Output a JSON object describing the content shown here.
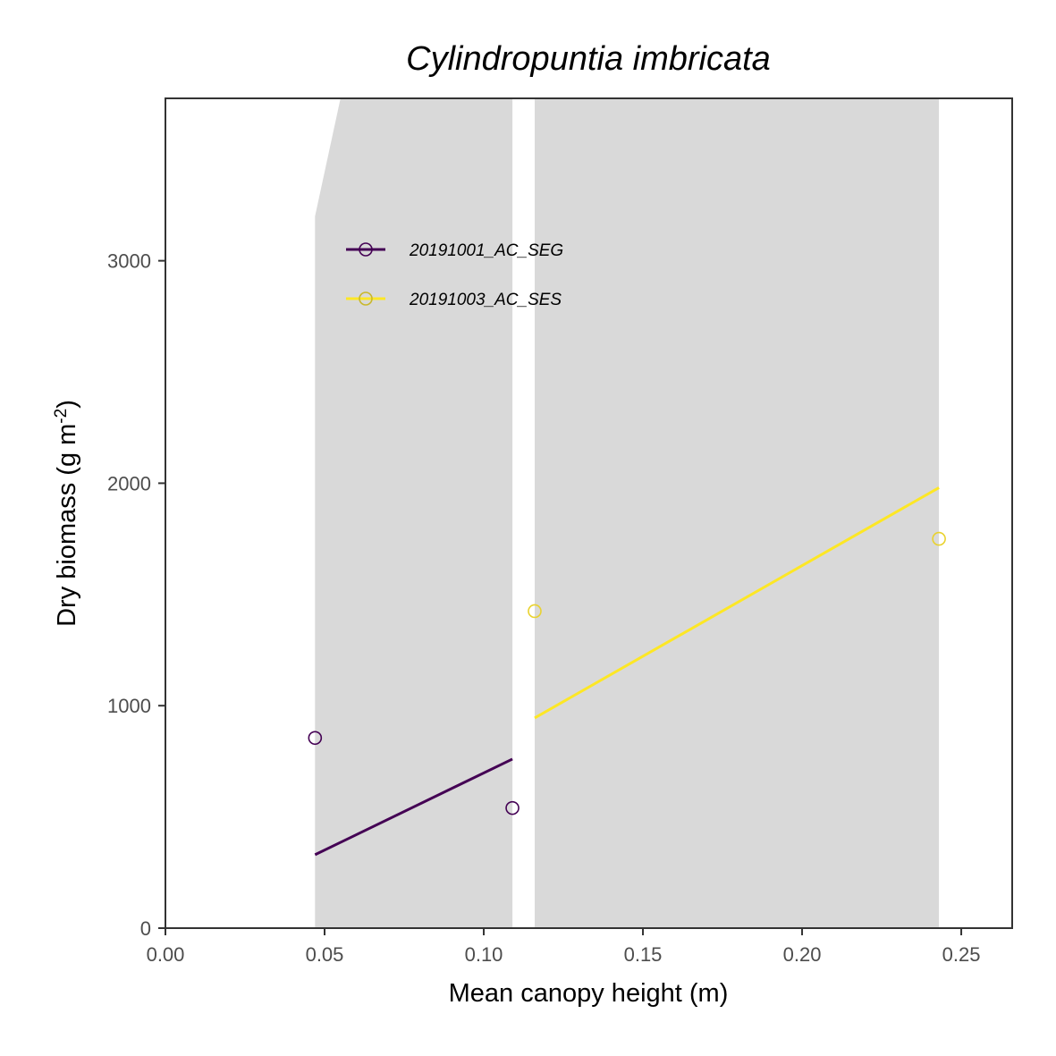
{
  "chart_data": {
    "type": "scatter",
    "title": "Cylindropuntia imbricata",
    "xlabel": "Mean canopy height (m)",
    "ylabel_main": "Dry biomass (g m",
    "ylabel_sup": "-2",
    "ylabel_close": ")",
    "xlim": [
      0,
      0.266
    ],
    "ylim": [
      0,
      3730
    ],
    "x_ticks": [
      0,
      0.05,
      0.1,
      0.15,
      0.2,
      0.25
    ],
    "x_tick_labels": [
      "0.00",
      "0.05",
      "0.10",
      "0.15",
      "0.20",
      "0.25"
    ],
    "y_ticks": [
      0,
      1000,
      2000,
      3000
    ],
    "y_tick_labels": [
      "0",
      "1000",
      "2000",
      "3000"
    ],
    "grid": false,
    "legend_position": "top-left, inside",
    "series": [
      {
        "name": "20191001_AC_SEG",
        "color": "#440154",
        "points": [
          [
            0.047,
            855
          ],
          [
            0.109,
            540
          ]
        ],
        "fit": [
          [
            0.047,
            330
          ],
          [
            0.109,
            760
          ]
        ],
        "ribbon": {
          "x": [
            0.047,
            0.055,
            0.109
          ],
          "upper": [
            3200,
            3730,
            3730
          ],
          "lower": [
            0,
            0,
            0
          ]
        }
      },
      {
        "name": "20191003_AC_SES",
        "color": "#FDE725",
        "points": [
          [
            0.116,
            1425
          ],
          [
            0.243,
            1750
          ]
        ],
        "fit": [
          [
            0.116,
            945
          ],
          [
            0.243,
            1980
          ]
        ],
        "ribbon": {
          "x": [
            0.116,
            0.243
          ],
          "upper": [
            3730,
            3730
          ],
          "lower": [
            0,
            0
          ]
        }
      }
    ]
  },
  "colors": {
    "ribbon": "#d9d9d9",
    "panel_border": "#333333",
    "tick": "#333333"
  }
}
